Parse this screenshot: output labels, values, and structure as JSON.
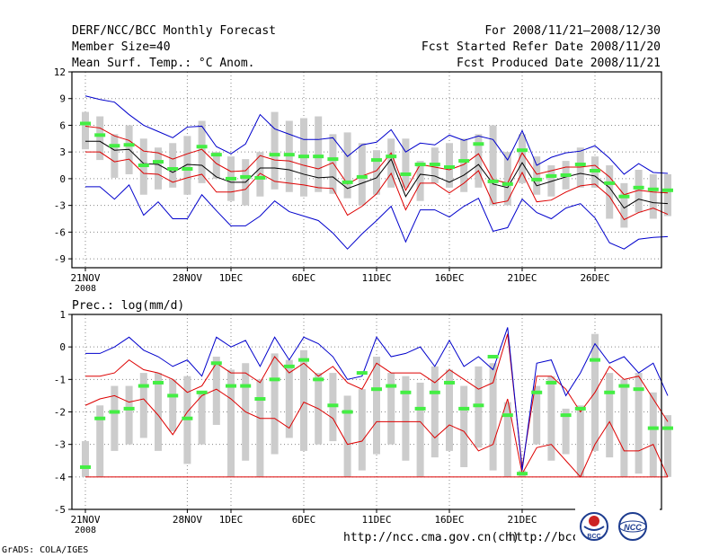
{
  "header": {
    "title": "DERF/NCC/BCC Monthly Forecast",
    "member_size": "Member Size=40",
    "variable": "Mean Surf. Temp.: °C Anom.",
    "period": "For 2008/11/21–2008/12/30",
    "start_date": "Fcst Started Refer Date 2008/11/20",
    "produced_date": "Fcst Produced Date 2008/11/21"
  },
  "footer": {
    "url_left": "http://ncc.cma.gov.cn(ch)",
    "url_right": "http://bcc.c",
    "grads": "GrADS: COLA/IGES",
    "logo_bcc": "BCC",
    "logo_ncc": "NCC"
  },
  "chart_data": [
    {
      "type": "line",
      "title": "Mean Surf. Temp.: °C Anom.",
      "ylim": [
        -10,
        12
      ],
      "yticks": [
        12,
        9,
        6,
        3,
        0,
        -3,
        -6,
        -9
      ],
      "xticks": [
        {
          "day": 0,
          "label": "21NOV",
          "sub": "2008"
        },
        {
          "day": 7,
          "label": "28NOV"
        },
        {
          "day": 10,
          "label": "1DEC"
        },
        {
          "day": 15,
          "label": "6DEC"
        },
        {
          "day": 20,
          "label": "11DEC"
        },
        {
          "day": 25,
          "label": "16DEC"
        },
        {
          "day": 30,
          "label": "21DEC"
        },
        {
          "day": 35,
          "label": "26DEC"
        }
      ],
      "box_low": [
        3.3,
        2.1,
        0.1,
        0.5,
        -1.8,
        -1.2,
        -1.0,
        -1.8,
        -0.5,
        0.0,
        -2.5,
        -3.0,
        -2.0,
        -1.2,
        -1.5,
        -2.0,
        -1.5,
        -1.7,
        -2.2,
        -3.0,
        -1.8,
        -1.0,
        -1.0,
        -2.5,
        -0.5,
        -1.0,
        -1.5,
        -1.0,
        -3.0,
        -3.0,
        -0.5,
        -1.8,
        -2.0,
        -1.2,
        -1.0,
        -1.0,
        -4.5,
        -5.5,
        -3.8,
        -4.5,
        -4.2
      ],
      "box_high": [
        7.5,
        7.0,
        5.0,
        6.0,
        4.5,
        3.5,
        4.0,
        4.8,
        6.5,
        3.0,
        2.5,
        2.2,
        3.0,
        7.5,
        6.5,
        6.8,
        7.0,
        5.0,
        5.2,
        4.0,
        3.2,
        4.5,
        4.5,
        2.0,
        3.5,
        4.0,
        4.5,
        5.0,
        6.0,
        3.0,
        5.0,
        2.5,
        1.5,
        2.0,
        3.5,
        2.5,
        1.5,
        -0.5,
        1.0,
        0.5,
        0.5
      ],
      "max": [
        9.3,
        8.9,
        8.6,
        7.2,
        6.0,
        5.3,
        4.6,
        5.8,
        5.9,
        3.6,
        2.8,
        3.9,
        7.2,
        5.6,
        5.0,
        4.4,
        4.4,
        4.6,
        2.5,
        3.8,
        4.1,
        5.5,
        3.0,
        4.0,
        3.8,
        4.9,
        4.3,
        4.8,
        4.4,
        2.1,
        5.4,
        1.5,
        2.4,
        2.9,
        3.1,
        3.7,
        2.3,
        0.5,
        1.7,
        0.7,
        0.6
      ],
      "upper": [
        5.9,
        5.7,
        4.8,
        4.3,
        3.1,
        2.9,
        2.2,
        2.8,
        3.3,
        1.7,
        0.8,
        0.9,
        2.6,
        2.1,
        2.0,
        1.5,
        1.1,
        1.8,
        -0.6,
        0.3,
        0.9,
        2.9,
        -1.3,
        1.6,
        1.3,
        1.0,
        1.6,
        2.8,
        -0.1,
        -0.5,
        2.9,
        0.5,
        0.9,
        1.3,
        1.3,
        1.5,
        0.2,
        -1.8,
        -1.3,
        -1.5,
        -1.6
      ],
      "mean": [
        4.2,
        4.2,
        3.2,
        3.3,
        1.7,
        1.6,
        0.7,
        1.6,
        1.5,
        0.2,
        -0.4,
        -0.4,
        1.2,
        1.2,
        1.0,
        0.5,
        0.1,
        0.2,
        -1.1,
        -0.5,
        0.1,
        2.2,
        -2.0,
        0.5,
        0.3,
        -0.4,
        0.4,
        1.6,
        -0.6,
        -1.0,
        1.8,
        -0.8,
        -0.3,
        0.2,
        0.6,
        0.3,
        -1.0,
        -3.3,
        -2.3,
        -2.7,
        -2.8
      ],
      "lower": [
        3.0,
        3.0,
        1.9,
        2.2,
        0.6,
        0.5,
        -0.4,
        0.1,
        0.5,
        -1.5,
        -1.5,
        -1.2,
        0.6,
        -0.3,
        -0.5,
        -0.7,
        -1.0,
        -1.1,
        -4.1,
        -3.1,
        -1.7,
        0.6,
        -3.5,
        -0.5,
        -0.5,
        -1.6,
        -0.5,
        0.9,
        -2.8,
        -2.5,
        0.7,
        -2.6,
        -2.4,
        -1.5,
        -0.8,
        -0.6,
        -2.0,
        -4.6,
        -3.8,
        -3.3,
        -4.0
      ],
      "min": [
        -0.9,
        -0.9,
        -2.3,
        -0.7,
        -4.1,
        -2.6,
        -4.5,
        -4.5,
        -1.8,
        -3.6,
        -5.3,
        -5.3,
        -4.2,
        -2.5,
        -3.7,
        -4.2,
        -4.7,
        -6.1,
        -7.9,
        -6.2,
        -4.7,
        -3.1,
        -7.1,
        -3.5,
        -3.5,
        -4.3,
        -3.1,
        -2.2,
        -5.9,
        -5.5,
        -2.3,
        -3.8,
        -4.5,
        -3.3,
        -2.8,
        -4.4,
        -7.2,
        -7.9,
        -6.8,
        -6.6,
        -6.5
      ],
      "observed": [
        6.2,
        4.9,
        3.7,
        3.8,
        1.5,
        1.9,
        1.1,
        1.1,
        3.6,
        2.7,
        0.0,
        0.2,
        0.1,
        2.7,
        2.7,
        2.5,
        2.5,
        2.2,
        -0.4,
        0.2,
        2.1,
        2.5,
        0.5,
        1.6,
        1.6,
        1.3,
        2.0,
        3.9,
        -0.3,
        -0.6,
        3.2,
        -0.1,
        0.3,
        0.4,
        1.6,
        0.9,
        -0.5,
        -2.0,
        -1.0,
        -1.2,
        -1.3
      ],
      "colors": {
        "max_min": "#0000cc",
        "upper_lower": "#dd0000",
        "mean": "#000000",
        "observed": "#44ee44",
        "box": "#cccccc"
      }
    },
    {
      "type": "line",
      "title": "Prec.: log(mm/d)",
      "ylim": [
        -5,
        1
      ],
      "yticks": [
        1,
        0,
        -1,
        -2,
        -3,
        -4,
        -5
      ],
      "xticks": [
        {
          "day": 0,
          "label": "21NOV",
          "sub": "2008"
        },
        {
          "day": 7,
          "label": "28NOV"
        },
        {
          "day": 10,
          "label": "1DEC"
        },
        {
          "day": 15,
          "label": "6DEC"
        },
        {
          "day": 20,
          "label": "11DEC"
        },
        {
          "day": 25,
          "label": "16DEC"
        },
        {
          "day": 30,
          "label": "21DEC"
        },
        {
          "day": 35,
          "label": "26DEC"
        }
      ],
      "box_low": [
        -4.0,
        -4.0,
        -3.2,
        -3.0,
        -2.8,
        -3.2,
        -2.6,
        -3.6,
        -3.0,
        -2.4,
        -4.0,
        -3.5,
        -4.0,
        -3.3,
        -2.8,
        -3.2,
        -3.0,
        -2.9,
        -4.0,
        -3.8,
        -3.3,
        -3.0,
        -3.5,
        -4.0,
        -3.4,
        -3.2,
        -3.7,
        -3.1,
        -3.8,
        -4.0,
        -4.0,
        -3.0,
        -3.5,
        -3.3,
        -4.0,
        -3.2,
        -3.4,
        -4.0,
        -3.9,
        -4.0,
        -4.0
      ],
      "box_high": [
        -2.9,
        -1.8,
        -1.2,
        -1.2,
        -0.8,
        -0.8,
        -1.0,
        -0.9,
        -1.4,
        -0.3,
        -0.7,
        -0.5,
        -1.0,
        -0.2,
        -0.4,
        -0.1,
        -0.8,
        -0.8,
        -1.5,
        -1.3,
        -0.3,
        -0.8,
        -0.9,
        -1.1,
        -0.6,
        -0.7,
        -1.2,
        -0.6,
        -0.5,
        -1.7,
        -3.8,
        -1.2,
        -0.9,
        -1.9,
        -1.8,
        0.4,
        -0.8,
        -1.0,
        -0.8,
        -1.4,
        -2.1
      ],
      "max": [
        -0.2,
        -0.2,
        0.0,
        0.3,
        -0.1,
        -0.3,
        -0.6,
        -0.4,
        -0.9,
        0.3,
        0.0,
        0.2,
        -0.6,
        0.3,
        -0.4,
        0.3,
        0.1,
        -0.3,
        -1.0,
        -0.9,
        0.3,
        -0.3,
        -0.2,
        0.0,
        -0.6,
        0.2,
        -0.6,
        -0.3,
        -0.7,
        0.6,
        -3.8,
        -0.5,
        -0.4,
        -1.5,
        -0.8,
        0.1,
        -0.5,
        -0.3,
        -0.8,
        -0.5,
        -1.5
      ],
      "upper": [
        -0.9,
        -0.9,
        -0.8,
        -0.4,
        -0.7,
        -0.8,
        -1.0,
        -1.4,
        -1.2,
        -0.5,
        -0.8,
        -0.8,
        -1.1,
        -0.3,
        -0.8,
        -0.5,
        -0.9,
        -0.6,
        -1.1,
        -1.3,
        -0.5,
        -0.8,
        -0.8,
        -0.8,
        -1.1,
        -0.7,
        -1.0,
        -1.3,
        -1.1,
        0.4,
        -3.7,
        -0.9,
        -0.9,
        -1.3,
        -2.0,
        -1.4,
        -0.6,
        -1.0,
        -0.9,
        -1.6,
        -2.3
      ],
      "lower": [
        -1.8,
        -1.6,
        -1.5,
        -1.7,
        -1.6,
        -2.1,
        -2.7,
        -2.0,
        -1.5,
        -1.3,
        -1.6,
        -2.0,
        -2.2,
        -2.2,
        -2.5,
        -1.7,
        -1.9,
        -2.2,
        -3.0,
        -2.9,
        -2.3,
        -2.3,
        -2.3,
        -2.3,
        -2.8,
        -2.4,
        -2.6,
        -3.2,
        -3.0,
        -1.6,
        -3.9,
        -3.1,
        -3.0,
        -3.5,
        -4.0,
        -3.0,
        -2.3,
        -3.2,
        -3.2,
        -3.0,
        -4.0
      ],
      "baseline": -4.0,
      "observed": [
        -3.7,
        -2.2,
        -2.0,
        -1.9,
        -1.2,
        -1.1,
        -1.5,
        -2.2,
        -1.4,
        -0.5,
        -1.2,
        -1.2,
        -1.6,
        -1.0,
        -0.6,
        -0.4,
        -1.0,
        -1.8,
        -2.0,
        -0.8,
        -1.3,
        -1.2,
        -1.4,
        -1.9,
        -1.4,
        -1.1,
        -1.9,
        -1.8,
        -0.3,
        -2.1,
        -3.9,
        -1.4,
        -1.1,
        -2.1,
        -1.9,
        -0.4,
        -1.4,
        -1.2,
        -1.3,
        -2.5,
        -2.5
      ],
      "colors": {
        "max_min": "#0000cc",
        "upper_lower": "#dd0000",
        "mean": "#000000",
        "observed": "#44ee44",
        "box": "#cccccc"
      }
    }
  ]
}
